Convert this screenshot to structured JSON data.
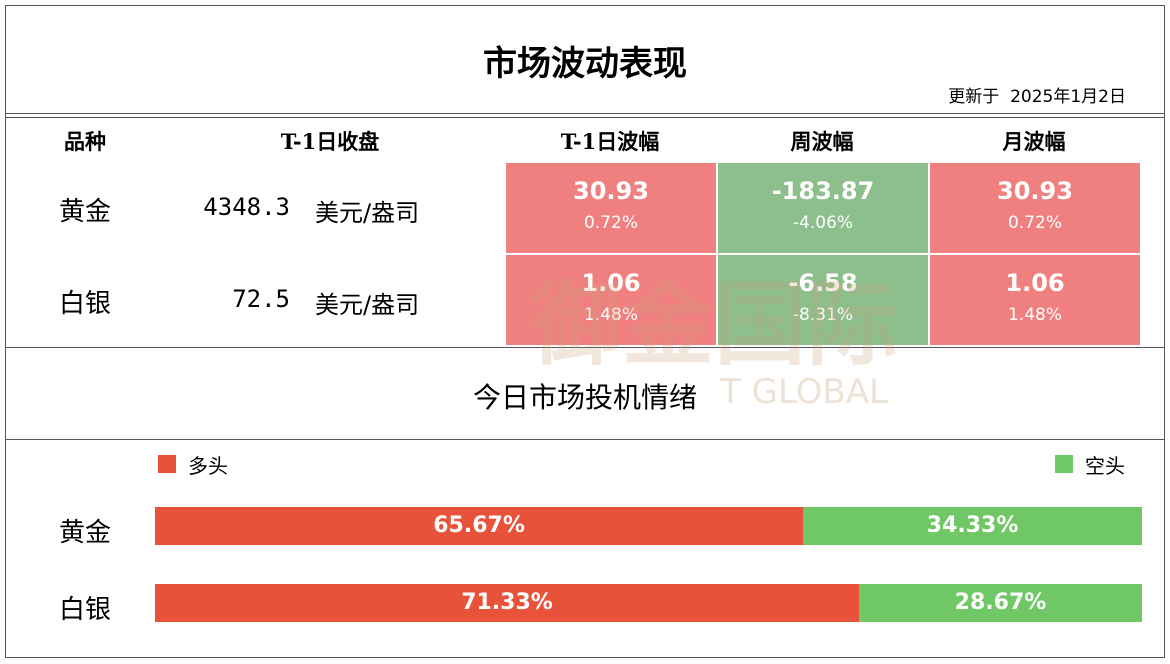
{
  "header": {
    "title": "市场波动表现",
    "updated": "更新于  2025年1月2日"
  },
  "table": {
    "headers": [
      "品种",
      "T-1日收盘",
      "T-1日波幅",
      "周波幅",
      "月波幅"
    ],
    "rows": [
      {
        "name": "黄金",
        "price": "4348.3",
        "unit": "美元/盎司",
        "cells": [
          {
            "value": "30.93",
            "pct": "0.72%",
            "color": "#f08080"
          },
          {
            "value": "-183.87",
            "pct": "-4.06%",
            "color": "#8cbf8c"
          },
          {
            "value": "30.93",
            "pct": "0.72%",
            "color": "#f08080"
          }
        ]
      },
      {
        "name": "白银",
        "price": "72.5",
        "unit": "美元/盎司",
        "cells": [
          {
            "value": "1.06",
            "pct": "1.48%",
            "color": "#f08080"
          },
          {
            "value": "-6.58",
            "pct": "-8.31%",
            "color": "#8cbf8c"
          },
          {
            "value": "1.06",
            "pct": "1.48%",
            "color": "#f08080"
          }
        ]
      }
    ]
  },
  "watermark": {
    "text": "御金国际",
    "subtext": "T GLOBAL"
  },
  "sentiment": {
    "title": "今日市场投机情绪",
    "categories": [
      "黄金",
      "白银"
    ],
    "xlim": [
      0,
      100
    ],
    "series": [
      {
        "name": "多头",
        "color": "#e8523a",
        "values": [
          65.67,
          71.33
        ],
        "value_labels": [
          "65.67%",
          "71.33%"
        ]
      },
      {
        "name": "空头",
        "color": "#70c765",
        "values": [
          34.33,
          28.67
        ],
        "value_labels": [
          "34.33%",
          "28.67%"
        ]
      }
    ]
  }
}
